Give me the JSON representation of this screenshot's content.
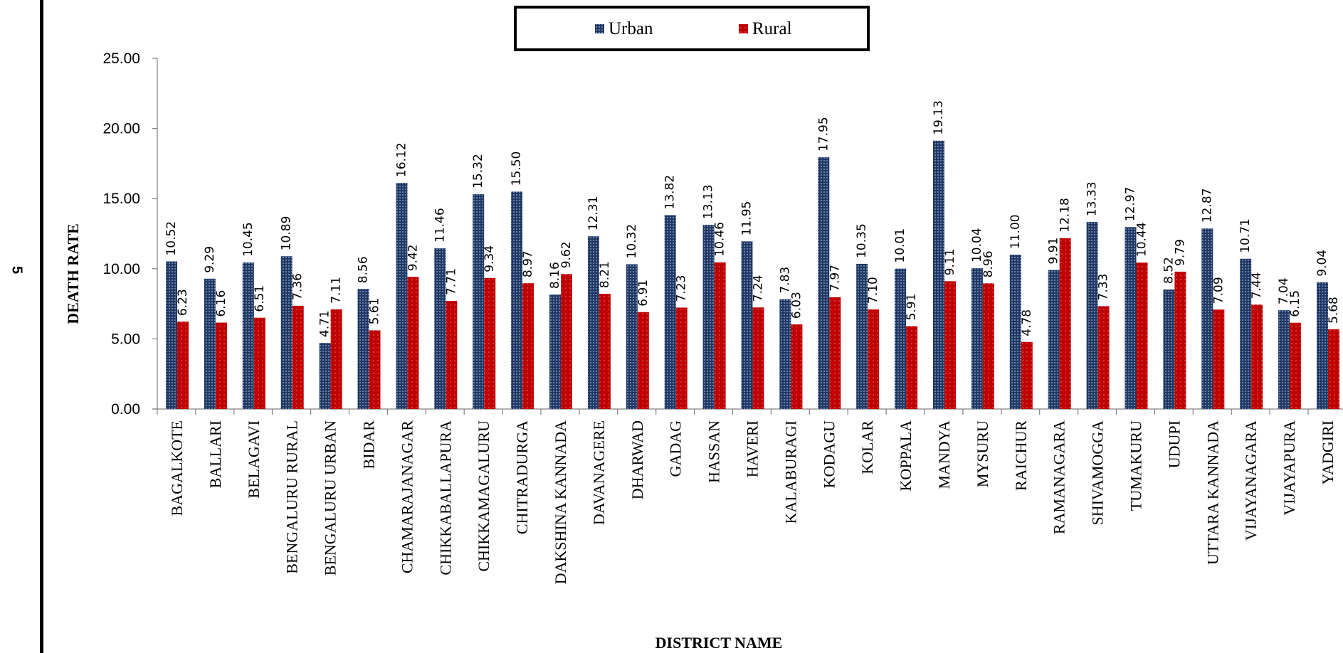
{
  "page_number": "5",
  "colors": {
    "urban": "#1F3864",
    "rural": "#C00000",
    "axis": "#808080"
  },
  "chart_data": {
    "type": "bar",
    "title": "",
    "xlabel": "DISTRICT NAME",
    "ylabel": "DEATH RATE",
    "ylim": [
      0,
      25
    ],
    "yticks": [
      "0.00",
      "5.00",
      "10.00",
      "15.00",
      "20.00",
      "25.00"
    ],
    "grid": false,
    "legend_position": "top-center",
    "categories": [
      "BAGALKOTE",
      "BALLARI",
      "BELAGAVI",
      "BENGALURU RURAL",
      "BENGALURU URBAN",
      "BIDAR",
      "CHAMARAJANAGAR",
      "CHIKKABALLAPURA",
      "CHIKKAMAGALURU",
      "CHITRADURGA",
      "DAKSHINA KANNADA",
      "DAVANAGERE",
      "DHARWAD",
      "GADAG",
      "HASSAN",
      "HAVERI",
      "KALABURAGI",
      "KODAGU",
      "KOLAR",
      "KOPPALA",
      "MANDYA",
      "MYSURU",
      "RAICHUR",
      "RAMANAGARA",
      "SHIVAMOGGA",
      "TUMAKURU",
      "UDUPI",
      "UTTARA KANNADA",
      "VIJAYANAGARA",
      "VIJAYAPURA",
      "YADGIRI"
    ],
    "series": [
      {
        "name": "Urban",
        "values": [
          10.52,
          9.29,
          10.45,
          10.89,
          4.71,
          8.56,
          16.12,
          11.46,
          15.32,
          15.5,
          8.16,
          12.31,
          10.32,
          13.82,
          13.13,
          11.95,
          7.83,
          17.95,
          10.35,
          10.01,
          19.13,
          10.04,
          11.0,
          9.91,
          13.33,
          12.97,
          8.52,
          12.87,
          10.71,
          7.04,
          9.04
        ]
      },
      {
        "name": "Rural",
        "values": [
          6.23,
          6.16,
          6.51,
          7.36,
          7.11,
          5.61,
          9.42,
          7.71,
          9.34,
          8.97,
          9.62,
          8.21,
          6.91,
          7.23,
          10.46,
          7.24,
          6.03,
          7.97,
          7.1,
          5.91,
          9.11,
          8.96,
          4.78,
          12.18,
          7.33,
          10.44,
          9.79,
          7.09,
          7.44,
          6.15,
          5.68
        ]
      }
    ]
  }
}
